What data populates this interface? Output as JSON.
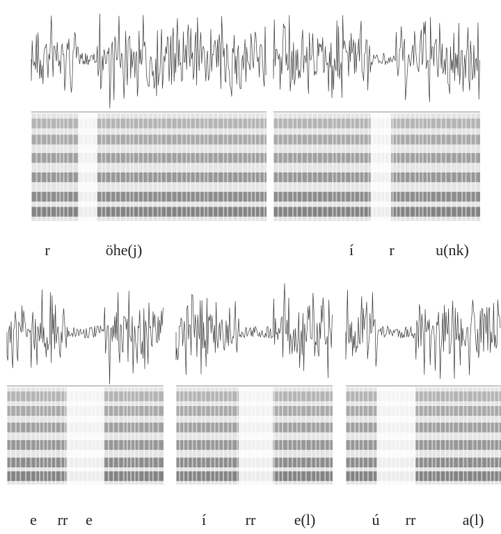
{
  "top_row": {
    "panels": [
      {
        "labels": [
          "r",
          "öhe(j)"
        ]
      },
      {
        "labels": [
          "í",
          "r",
          "u(nk)"
        ]
      }
    ]
  },
  "bottom_row": {
    "panels": [
      {
        "labels": [
          "e",
          "rr",
          "e"
        ]
      },
      {
        "labels": [
          "í",
          "rr",
          "e(l)"
        ]
      },
      {
        "labels": [
          "ú",
          "rr",
          "a(l)"
        ]
      }
    ]
  }
}
